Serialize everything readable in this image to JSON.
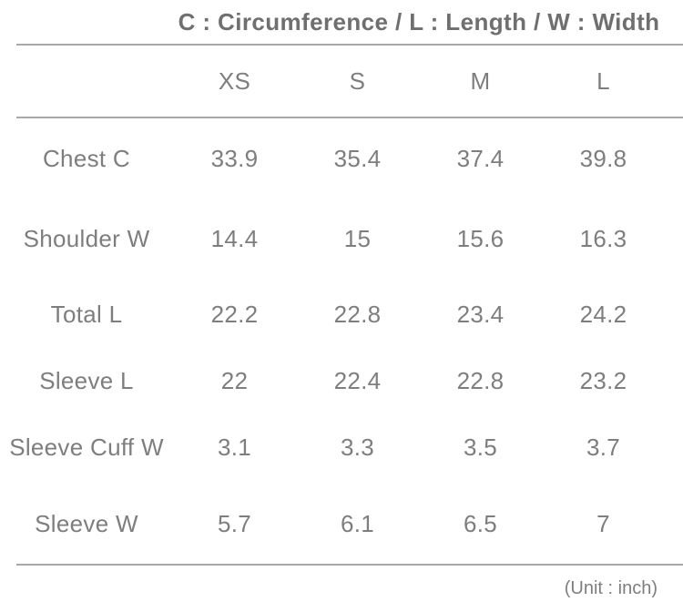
{
  "chart_data": {
    "type": "table",
    "title": "C : Circumference / L : Length / W : Width",
    "columns": [
      "XS",
      "S",
      "M",
      "L"
    ],
    "rows": [
      {
        "label": "Chest C",
        "values": [
          "33.9",
          "35.4",
          "37.4",
          "39.8"
        ]
      },
      {
        "label": "Shoulder W",
        "values": [
          "14.4",
          "15",
          "15.6",
          "16.3"
        ]
      },
      {
        "label": "Total L",
        "values": [
          "22.2",
          "22.8",
          "23.4",
          "24.2"
        ]
      },
      {
        "label": "Sleeve L",
        "values": [
          "22",
          "22.4",
          "22.8",
          "23.2"
        ]
      },
      {
        "label": "Sleeve Cuff W",
        "values": [
          "3.1",
          "3.3",
          "3.5",
          "3.7"
        ]
      },
      {
        "label": "Sleeve W",
        "values": [
          "5.7",
          "6.1",
          "6.5",
          "7"
        ]
      }
    ],
    "unit": "(Unit : inch)"
  },
  "colors": {
    "background": "#ffffff",
    "body_text": "#7e7e7e",
    "title_text": "#6f6f6f",
    "divider": "#a8a8a8"
  }
}
